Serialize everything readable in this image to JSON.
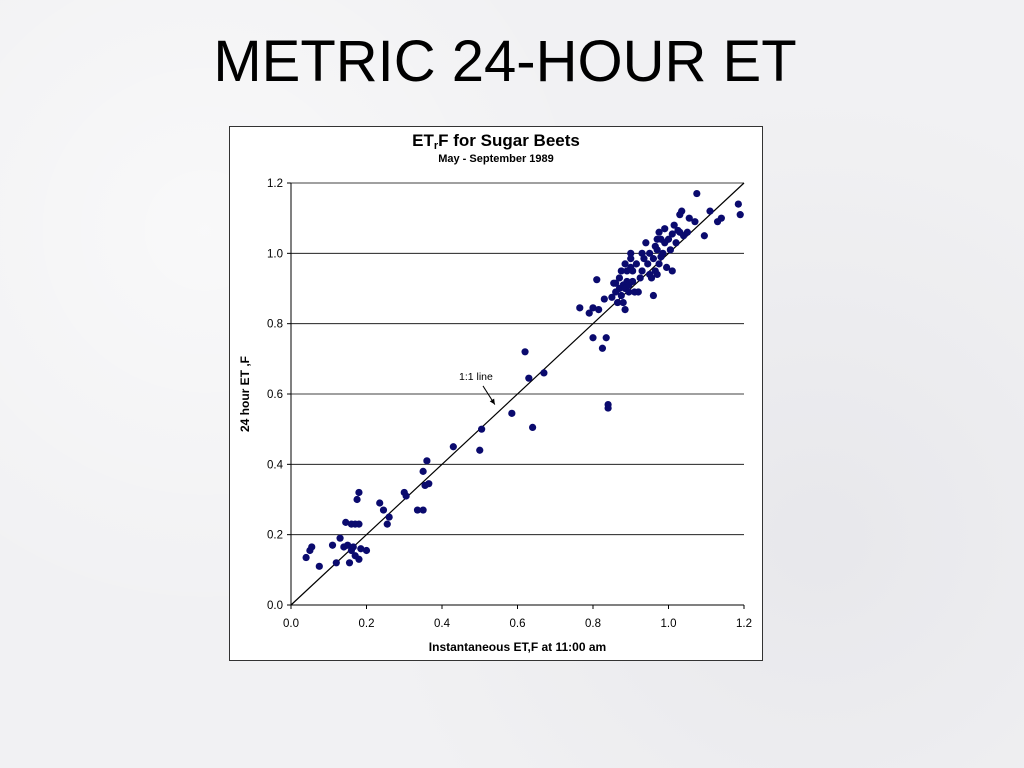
{
  "slide": {
    "title": "METRIC 24-HOUR ET"
  },
  "chart_data": {
    "type": "scatter",
    "title_main": "ET",
    "title_sub": "r",
    "title_rest": "F for Sugar Beets",
    "subtitle": "May  -  September 1989",
    "xlabel": "Instantaneous ET,F at 11:00 am",
    "ylabel": "24 hour ET ,F",
    "xlim": [
      0,
      1.2
    ],
    "ylim": [
      0,
      1.2
    ],
    "xticks": [
      "0.0",
      "0.2",
      "0.4",
      "0.6",
      "0.8",
      "1.0",
      "1.2"
    ],
    "yticks": [
      "0.0",
      "0.2",
      "0.4",
      "0.6",
      "0.8",
      "1.0",
      "1.2"
    ],
    "grid": "horizontal",
    "marker_color": "#0a0a6e",
    "reference_line": {
      "label": "1:1 line",
      "from": [
        0,
        0
      ],
      "to": [
        1.2,
        1.2
      ]
    },
    "annotation": {
      "text": "1:1 line",
      "x": 0.445,
      "y": 0.64,
      "arrow_to": [
        0.54,
        0.57
      ]
    },
    "series": [
      {
        "x": [
          0.04,
          0.05,
          0.055,
          0.075,
          0.11,
          0.12,
          0.13,
          0.14,
          0.145,
          0.15,
          0.155,
          0.16,
          0.16,
          0.165,
          0.17,
          0.17,
          0.175,
          0.18,
          0.18,
          0.18,
          0.185,
          0.2,
          0.235,
          0.245,
          0.255,
          0.26,
          0.3,
          0.305,
          0.335,
          0.35,
          0.35,
          0.355,
          0.36,
          0.365,
          0.43,
          0.5,
          0.505,
          0.585,
          0.62,
          0.63,
          0.64,
          0.67,
          0.765,
          0.79,
          0.8,
          0.8,
          0.81,
          0.815,
          0.825,
          0.83,
          0.835,
          0.84,
          0.84,
          0.85,
          0.855,
          0.86,
          0.86,
          0.865,
          0.87,
          0.87,
          0.875,
          0.875,
          0.88,
          0.88,
          0.885,
          0.885,
          0.885,
          0.89,
          0.89,
          0.895,
          0.895,
          0.9,
          0.9,
          0.9,
          0.905,
          0.905,
          0.91,
          0.915,
          0.92,
          0.925,
          0.93,
          0.93,
          0.935,
          0.94,
          0.945,
          0.95,
          0.95,
          0.955,
          0.96,
          0.96,
          0.965,
          0.965,
          0.97,
          0.97,
          0.97,
          0.975,
          0.975,
          0.98,
          0.98,
          0.985,
          0.99,
          0.99,
          0.995,
          1.0,
          1.005,
          1.01,
          1.01,
          1.015,
          1.02,
          1.025,
          1.03,
          1.03,
          1.035,
          1.04,
          1.05,
          1.055,
          1.07,
          1.075,
          1.095,
          1.11,
          1.13,
          1.14,
          1.185,
          1.19
        ],
        "y": [
          0.135,
          0.155,
          0.165,
          0.11,
          0.17,
          0.12,
          0.19,
          0.165,
          0.235,
          0.17,
          0.12,
          0.155,
          0.23,
          0.165,
          0.23,
          0.14,
          0.3,
          0.32,
          0.13,
          0.23,
          0.16,
          0.155,
          0.29,
          0.27,
          0.23,
          0.25,
          0.32,
          0.31,
          0.27,
          0.38,
          0.27,
          0.34,
          0.41,
          0.345,
          0.45,
          0.44,
          0.5,
          0.545,
          0.72,
          0.645,
          0.505,
          0.66,
          0.845,
          0.83,
          0.76,
          0.845,
          0.925,
          0.84,
          0.73,
          0.87,
          0.76,
          0.57,
          0.56,
          0.875,
          0.915,
          0.89,
          0.915,
          0.86,
          0.9,
          0.93,
          0.88,
          0.95,
          0.86,
          0.91,
          0.84,
          0.9,
          0.97,
          0.92,
          0.95,
          0.91,
          0.89,
          0.96,
          0.985,
          1.0,
          0.95,
          0.92,
          0.89,
          0.97,
          0.89,
          0.93,
          1.0,
          0.95,
          0.985,
          1.03,
          0.97,
          0.94,
          1.0,
          0.93,
          0.88,
          0.985,
          0.95,
          1.02,
          1.04,
          0.94,
          1.01,
          0.97,
          1.06,
          0.99,
          1.04,
          1.0,
          1.03,
          1.07,
          0.96,
          1.04,
          1.01,
          0.95,
          1.055,
          1.08,
          1.03,
          1.065,
          1.11,
          1.06,
          1.12,
          1.05,
          1.06,
          1.1,
          1.09,
          1.17,
          1.05,
          1.12,
          1.09,
          1.1,
          1.14,
          1.11
        ]
      }
    ]
  }
}
